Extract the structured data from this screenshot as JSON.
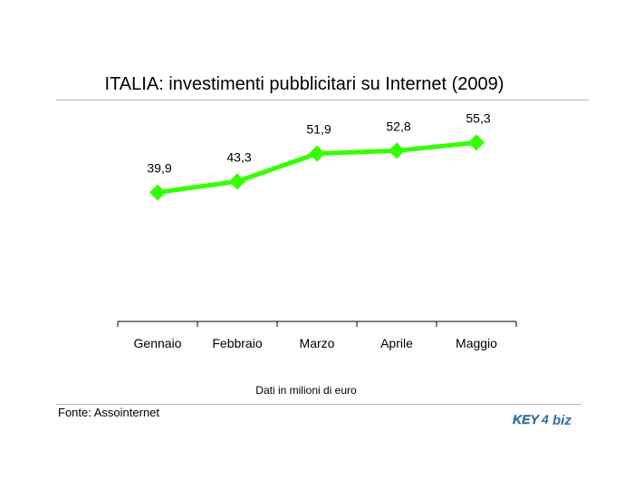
{
  "chart_data": {
    "type": "line",
    "title": "ITALIA: investimenti pubblicitari su Internet (2009)",
    "categories": [
      "Gennaio",
      "Febbraio",
      "Marzo",
      "Aprile",
      "Maggio"
    ],
    "values": [
      39.9,
      43.3,
      51.9,
      52.8,
      55.3
    ],
    "data_labels": [
      "39,9",
      "43,3",
      "51,9",
      "52,8",
      "55,3"
    ],
    "ylim": [
      0,
      70
    ],
    "grid": false,
    "legend": "none",
    "colors": {
      "line": "#33ff00",
      "marker": "#33ff00",
      "axis": "#000000"
    }
  },
  "note": "Dati in milioni di euro",
  "source": "Fonte: Assointernet",
  "logo": {
    "text_left": "KEY",
    "text_mid": "4",
    "text_right": "biz",
    "color": "#2f6fa8"
  }
}
